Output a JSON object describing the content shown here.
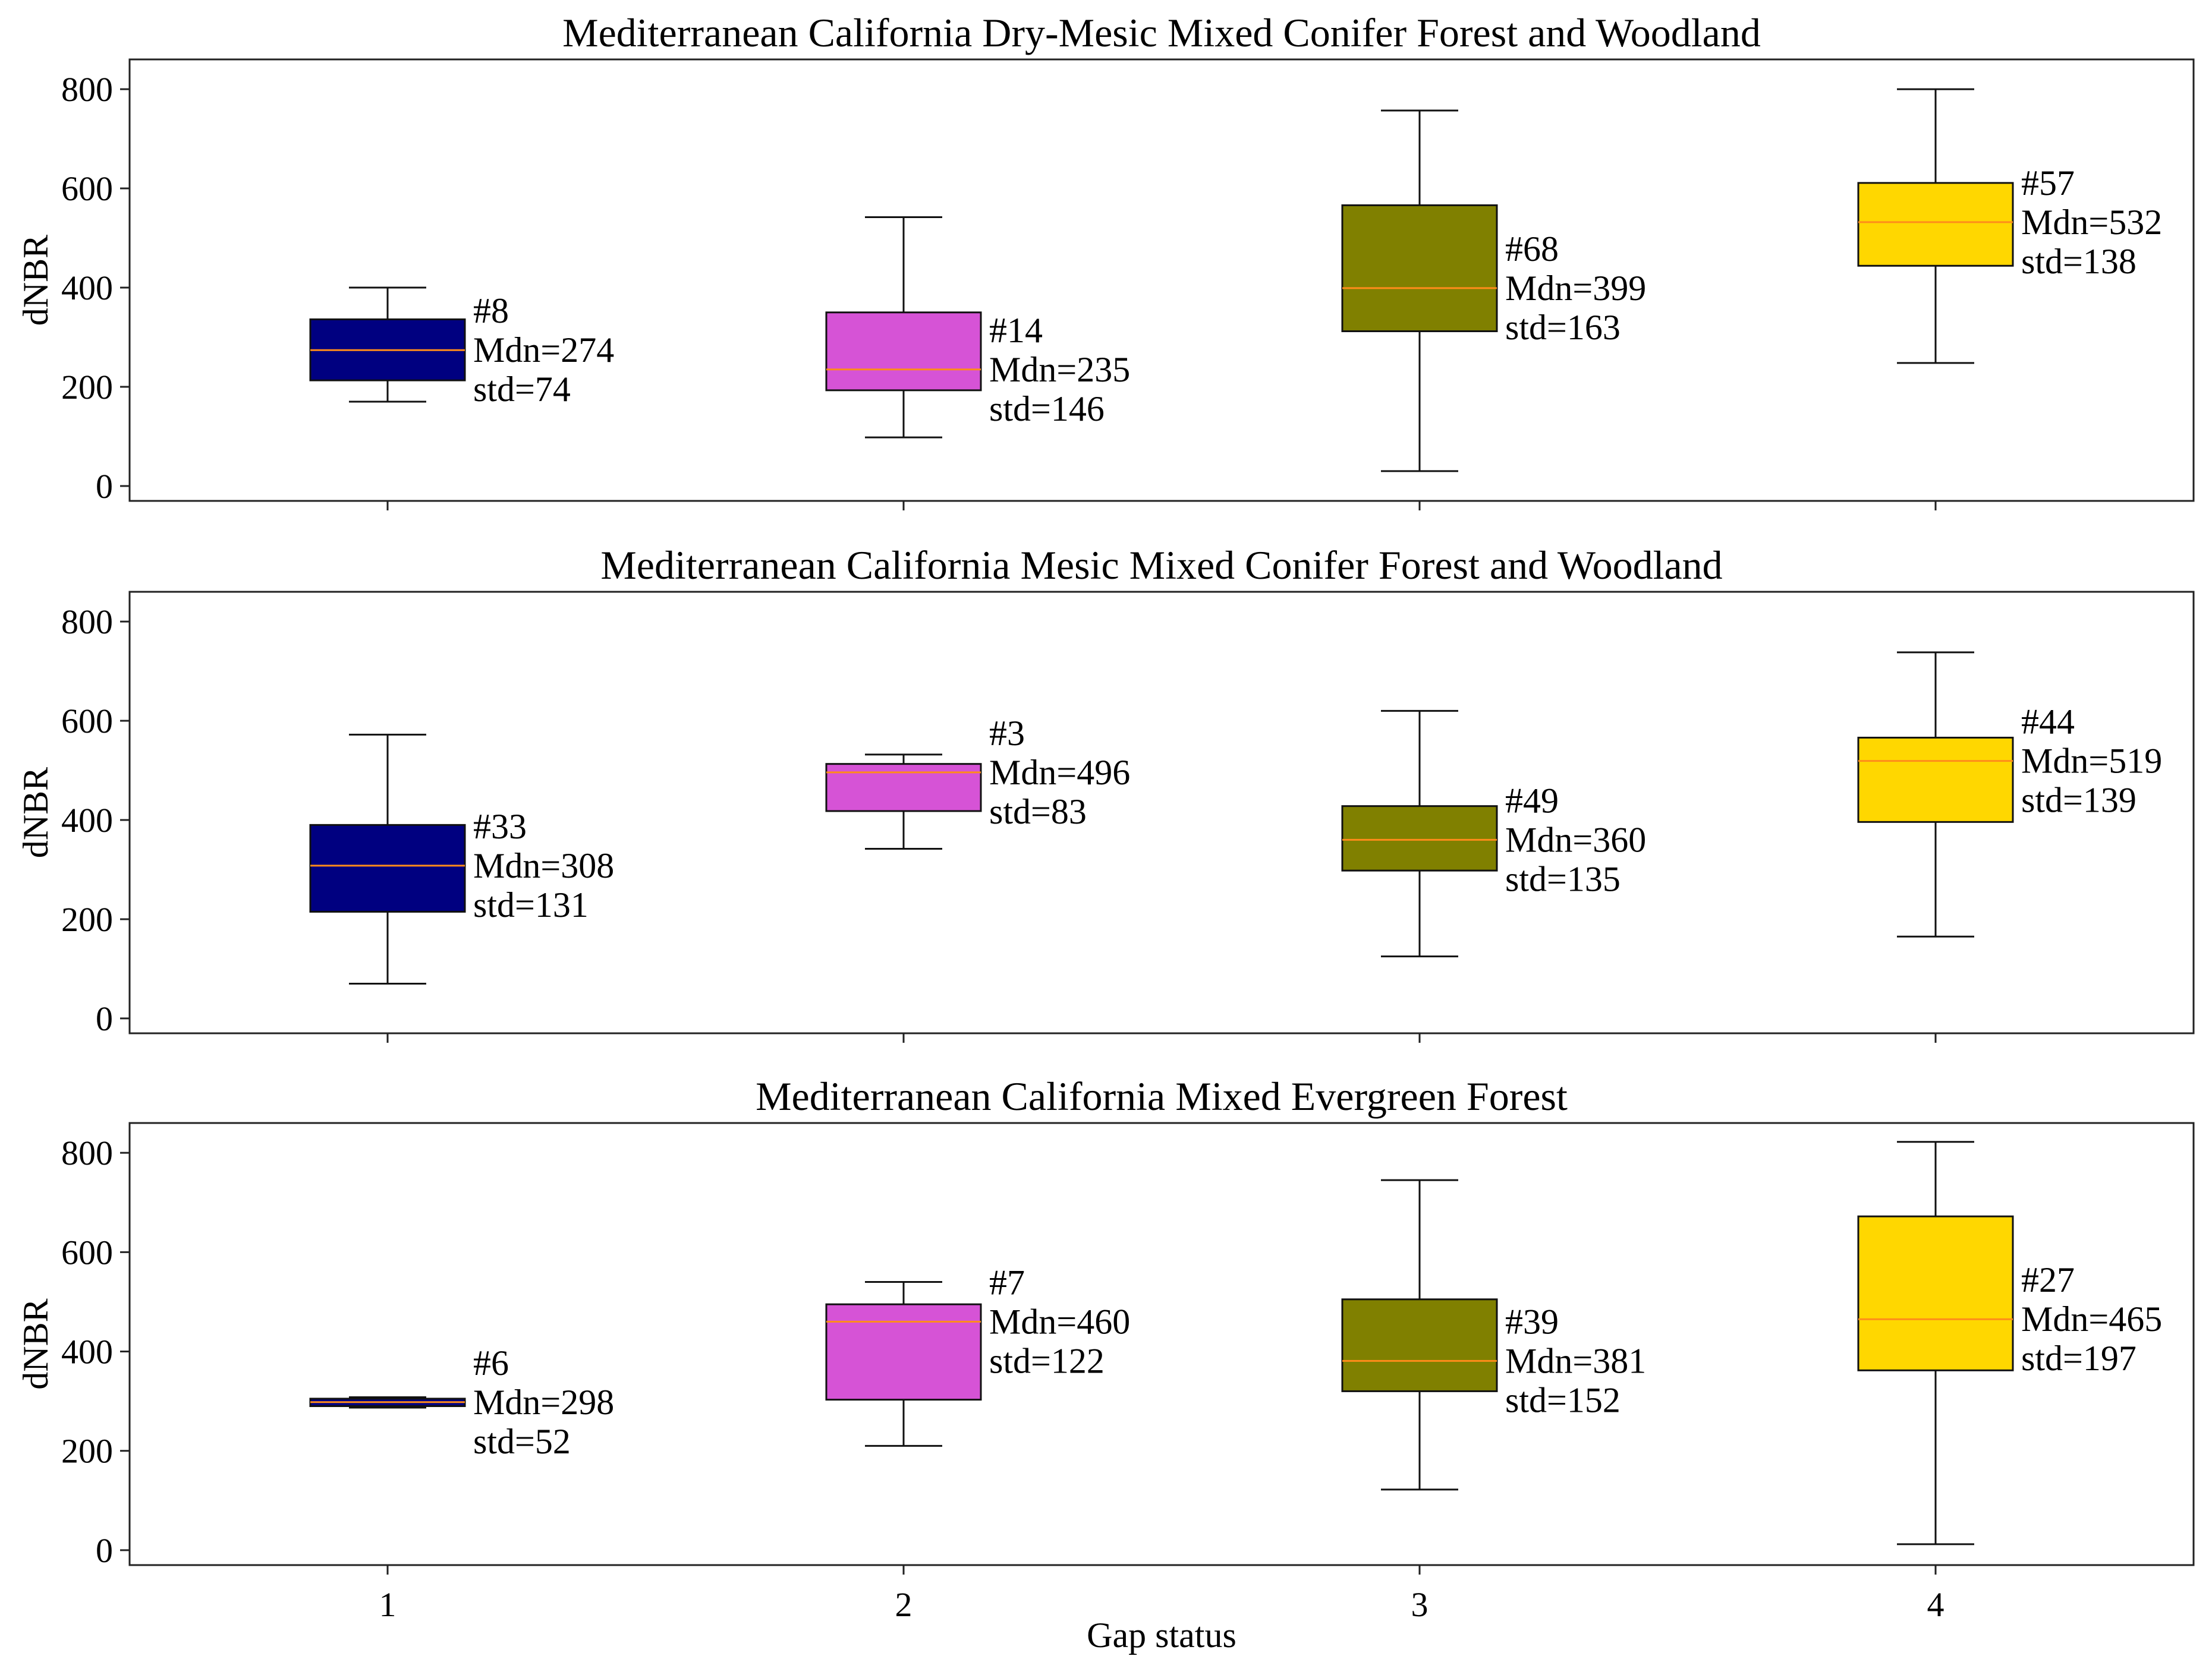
{
  "chart_data": {
    "type": "box",
    "xlabel": "Gap status",
    "ylabel": "dNBR",
    "categories": [
      "1",
      "2",
      "3",
      "4"
    ],
    "ylim": [
      -30,
      860
    ],
    "yticks": [
      0,
      200,
      400,
      600,
      800
    ],
    "colors": {
      "1": "#000080",
      "2": "#d653d6",
      "3": "#808000",
      "4": "#ffd700",
      "median": "#ff8c1a"
    },
    "panels": [
      {
        "title": "Mediterranean California Dry-Mesic Mixed Conifer Forest and Woodland",
        "boxes": [
          {
            "category": "1",
            "whislo": 170,
            "q1": 213,
            "median": 274,
            "q3": 336,
            "whishi": 400,
            "label_n": "#8",
            "label_mdn": "Mdn=274",
            "label_std": "std=74"
          },
          {
            "category": "2",
            "whislo": 98,
            "q1": 193,
            "median": 235,
            "q3": 350,
            "whishi": 542,
            "label_n": "#14",
            "label_mdn": "Mdn=235",
            "label_std": "std=146"
          },
          {
            "category": "3",
            "whislo": 30,
            "q1": 312,
            "median": 399,
            "q3": 566,
            "whishi": 757,
            "label_n": "#68",
            "label_mdn": "Mdn=399",
            "label_std": "std=163"
          },
          {
            "category": "4",
            "whislo": 248,
            "q1": 444,
            "median": 532,
            "q3": 611,
            "whishi": 800,
            "label_n": "#57",
            "label_mdn": "Mdn=532",
            "label_std": "std=138"
          }
        ]
      },
      {
        "title": "Mediterranean California Mesic Mixed Conifer Forest and Woodland",
        "boxes": [
          {
            "category": "1",
            "whislo": 70,
            "q1": 215,
            "median": 308,
            "q3": 390,
            "whishi": 572,
            "label_n": "#33",
            "label_mdn": "Mdn=308",
            "label_std": "std=131"
          },
          {
            "category": "2",
            "whislo": 342,
            "q1": 418,
            "median": 496,
            "q3": 513,
            "whishi": 532,
            "label_n": "#3",
            "label_mdn": "Mdn=496",
            "label_std": "std=83"
          },
          {
            "category": "3",
            "whislo": 125,
            "q1": 298,
            "median": 360,
            "q3": 428,
            "whishi": 620,
            "label_n": "#49",
            "label_mdn": "Mdn=360",
            "label_std": "std=135"
          },
          {
            "category": "4",
            "whislo": 165,
            "q1": 396,
            "median": 519,
            "q3": 566,
            "whishi": 738,
            "label_n": "#44",
            "label_mdn": "Mdn=519",
            "label_std": "std=139"
          }
        ]
      },
      {
        "title": "Mediterranean California Mixed Evergreen Forest",
        "boxes": [
          {
            "category": "1",
            "whislo": 287,
            "q1": 290,
            "median": 298,
            "q3": 305,
            "whishi": 308,
            "label_n": "#6",
            "label_mdn": "Mdn=298",
            "label_std": "std=52"
          },
          {
            "category": "2",
            "whislo": 210,
            "q1": 303,
            "median": 460,
            "q3": 495,
            "whishi": 540,
            "label_n": "#7",
            "label_mdn": "Mdn=460",
            "label_std": "std=122"
          },
          {
            "category": "3",
            "whislo": 122,
            "q1": 320,
            "median": 381,
            "q3": 505,
            "whishi": 745,
            "label_n": "#39",
            "label_mdn": "Mdn=381",
            "label_std": "std=152"
          },
          {
            "category": "4",
            "whislo": 12,
            "q1": 362,
            "median": 465,
            "q3": 672,
            "whishi": 822,
            "label_n": "#27",
            "label_mdn": "Mdn=465",
            "label_std": "std=197"
          }
        ]
      }
    ]
  }
}
